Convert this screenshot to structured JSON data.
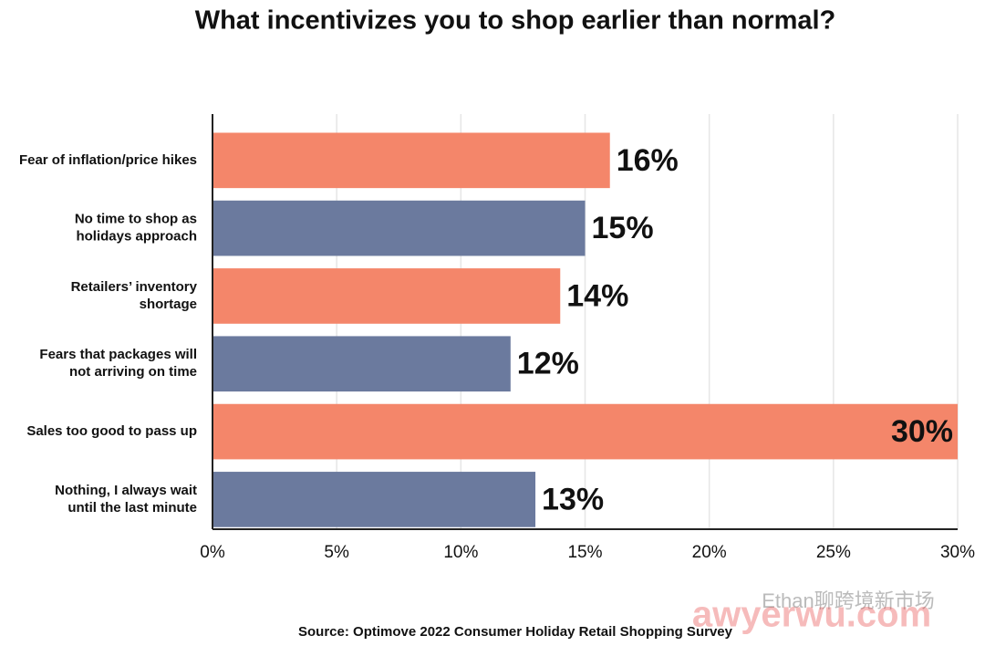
{
  "chart_data": {
    "type": "bar",
    "orientation": "horizontal",
    "title": "What incentivizes you to shop earlier than normal?",
    "categories": [
      [
        "Fear of inflation/price hikes"
      ],
      [
        "No time to shop as",
        "holidays approach"
      ],
      [
        "Retailers’ inventory",
        "shortage"
      ],
      [
        "Fears that packages will",
        "not arriving on time"
      ],
      [
        "Sales too good to pass up"
      ],
      [
        "Nothing, I always wait",
        "until the last minute"
      ]
    ],
    "values": [
      16,
      15,
      14,
      12,
      30,
      13
    ],
    "value_labels": [
      "16%",
      "15%",
      "14%",
      "12%",
      "30%",
      "13%"
    ],
    "colors": [
      "#f4866a",
      "#6b7a9e",
      "#f4866a",
      "#6b7a9e",
      "#f4866a",
      "#6b7a9e"
    ],
    "xlim": [
      0,
      30
    ],
    "xticks": [
      {
        "value": 0,
        "label": "0%"
      },
      {
        "value": 5,
        "label": "5%"
      },
      {
        "value": 10,
        "label": "10%"
      },
      {
        "value": 15,
        "label": "15%"
      },
      {
        "value": 20,
        "label": "20%"
      },
      {
        "value": 25,
        "label": "25%"
      },
      {
        "value": 30,
        "label": "30%"
      }
    ],
    "grid": true,
    "source": "Source: Optimove 2022 Consumer Holiday Retail Shopping Survey",
    "watermark": [
      "Ethan聊跨境新市场",
      "awyerwu.com"
    ]
  }
}
